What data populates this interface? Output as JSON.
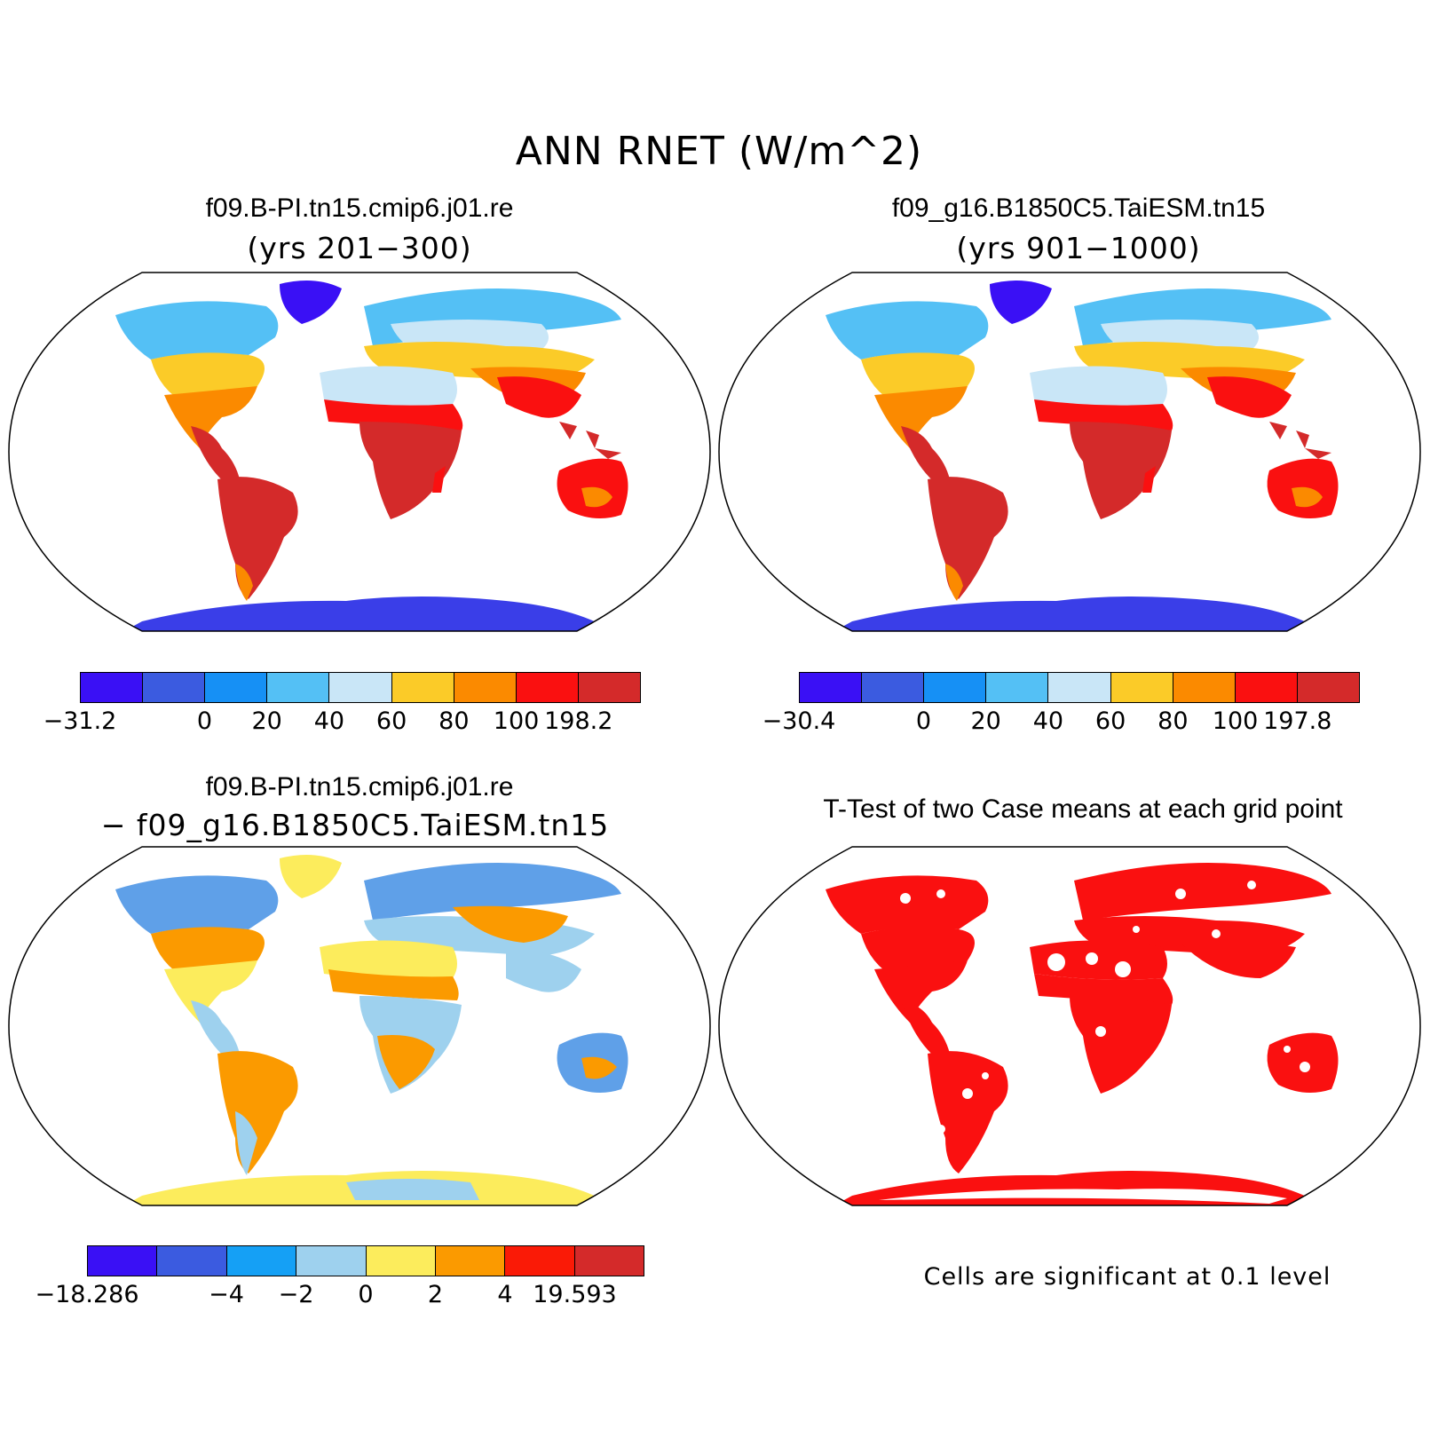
{
  "title": "ANN RNET (W/m^2)",
  "panels": [
    {
      "title": "f09.B-PI.tn15.cmip6.j01.re",
      "subtitle": "(yrs 201−300)",
      "colorbar": {
        "colors": [
          "#3a10f5",
          "#3b5be0",
          "#1690f5",
          "#54c0f5",
          "#c9e6f7",
          "#fbcb28",
          "#fb8a00",
          "#fa1010",
          "#d42a2a"
        ],
        "labels": [
          "−31.2",
          "0",
          "20",
          "40",
          "60",
          "80",
          "100",
          "198.2"
        ]
      }
    },
    {
      "title": "f09_g16.B1850C5.TaiESM.tn15",
      "subtitle": "(yrs 901−1000)",
      "colorbar": {
        "colors": [
          "#3a10f5",
          "#3b5be0",
          "#1690f5",
          "#54c0f5",
          "#c9e6f7",
          "#fbcb28",
          "#fb8a00",
          "#fa1010",
          "#d42a2a"
        ],
        "labels": [
          "−30.4",
          "0",
          "20",
          "40",
          "60",
          "80",
          "100",
          "197.8"
        ]
      }
    },
    {
      "title": "f09.B-PI.tn15.cmip6.j01.re",
      "subtitle": "− f09_g16.B1850C5.TaiESM.tn15",
      "colorbar": {
        "colors": [
          "#3a10f5",
          "#3b5be0",
          "#15a0f5",
          "#9ed1ee",
          "#fcec5c",
          "#fb9a00",
          "#fa1a06",
          "#d42a2a"
        ],
        "labels": [
          "−18.286",
          "−4",
          "−2",
          "0",
          "2",
          "4",
          "19.593"
        ]
      }
    },
    {
      "title": "T-Test of two Case means at each grid point",
      "note": "Cells are significant at 0.1 level"
    }
  ],
  "map_colors": {
    "p1": {
      "antarctica": "#3a3ee8",
      "greenland": "#3a10f5",
      "north": "#54c0f5",
      "mid": "#fbcb28",
      "warm": "#fb8a00",
      "tropics": "#d42a2a",
      "dry": "#c9e6f7"
    },
    "p3": {
      "antarctica": "#fcec5c",
      "north": "#5fa0e8",
      "mid": "#fcec5c",
      "warm": "#fb9a00",
      "tropics": "#fb7a10",
      "dry": "#9ed1ee"
    },
    "p4": {
      "land": "#fa1010"
    }
  }
}
